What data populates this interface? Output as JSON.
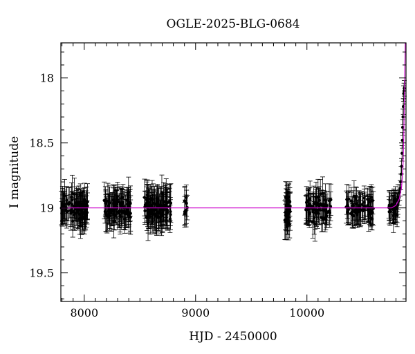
{
  "chart_data": {
    "type": "scatter",
    "title": "OGLE-2025-BLG-0684",
    "xlabel": "HJD - 2450000",
    "ylabel": "I magnitude",
    "xlim": [
      7790,
      10890
    ],
    "ylim": [
      19.72,
      17.73
    ],
    "y_inverted": true,
    "x_ticks": [
      8000,
      9000,
      10000
    ],
    "y_ticks": [
      18,
      18.5,
      19,
      19.5
    ],
    "x_tick_labels": [
      "8000",
      "9000",
      "10000"
    ],
    "y_tick_labels": [
      "18",
      "18.5",
      "19",
      "19.5"
    ],
    "grid": false,
    "colors": {
      "data": "#000000",
      "model": "#cc00cc"
    },
    "baseline_magnitude": 19.0,
    "seasons": [
      {
        "x_start": 7795,
        "x_end": 8030,
        "n": 90,
        "sigma": 0.07,
        "err": 0.11
      },
      {
        "x_start": 8180,
        "x_end": 8420,
        "n": 85,
        "sigma": 0.07,
        "err": 0.11
      },
      {
        "x_start": 8540,
        "x_end": 8780,
        "n": 100,
        "sigma": 0.07,
        "err": 0.12
      },
      {
        "x_start": 8900,
        "x_end": 8930,
        "n": 10,
        "sigma": 0.07,
        "err": 0.1
      },
      {
        "x_start": 9800,
        "x_end": 9850,
        "n": 30,
        "sigma": 0.1,
        "err": 0.12
      },
      {
        "x_start": 9990,
        "x_end": 10220,
        "n": 70,
        "sigma": 0.07,
        "err": 0.11
      },
      {
        "x_start": 10350,
        "x_end": 10600,
        "n": 70,
        "sigma": 0.06,
        "err": 0.1
      },
      {
        "x_start": 10730,
        "x_end": 10820,
        "n": 30,
        "sigma": 0.06,
        "err": 0.1
      }
    ],
    "event_points": [
      [
        10822,
        18.95
      ],
      [
        10828,
        18.92
      ],
      [
        10833,
        18.88
      ],
      [
        10838,
        18.85
      ],
      [
        10842,
        18.8
      ],
      [
        10846,
        18.74
      ],
      [
        10850,
        18.68
      ],
      [
        10854,
        18.58
      ],
      [
        10857,
        18.48
      ],
      [
        10860,
        18.38
      ],
      [
        10863,
        18.3
      ],
      [
        10866,
        18.22
      ],
      [
        10869,
        18.12
      ],
      [
        10872,
        18.1
      ],
      [
        10874,
        18.08
      ]
    ],
    "model_curve": [
      [
        7790,
        19.0
      ],
      [
        10760,
        19.0
      ],
      [
        10800,
        18.98
      ],
      [
        10830,
        18.93
      ],
      [
        10850,
        18.84
      ],
      [
        10862,
        18.7
      ],
      [
        10870,
        18.45
      ],
      [
        10876,
        18.15
      ],
      [
        10880,
        17.9
      ],
      [
        10883,
        17.73
      ]
    ]
  }
}
